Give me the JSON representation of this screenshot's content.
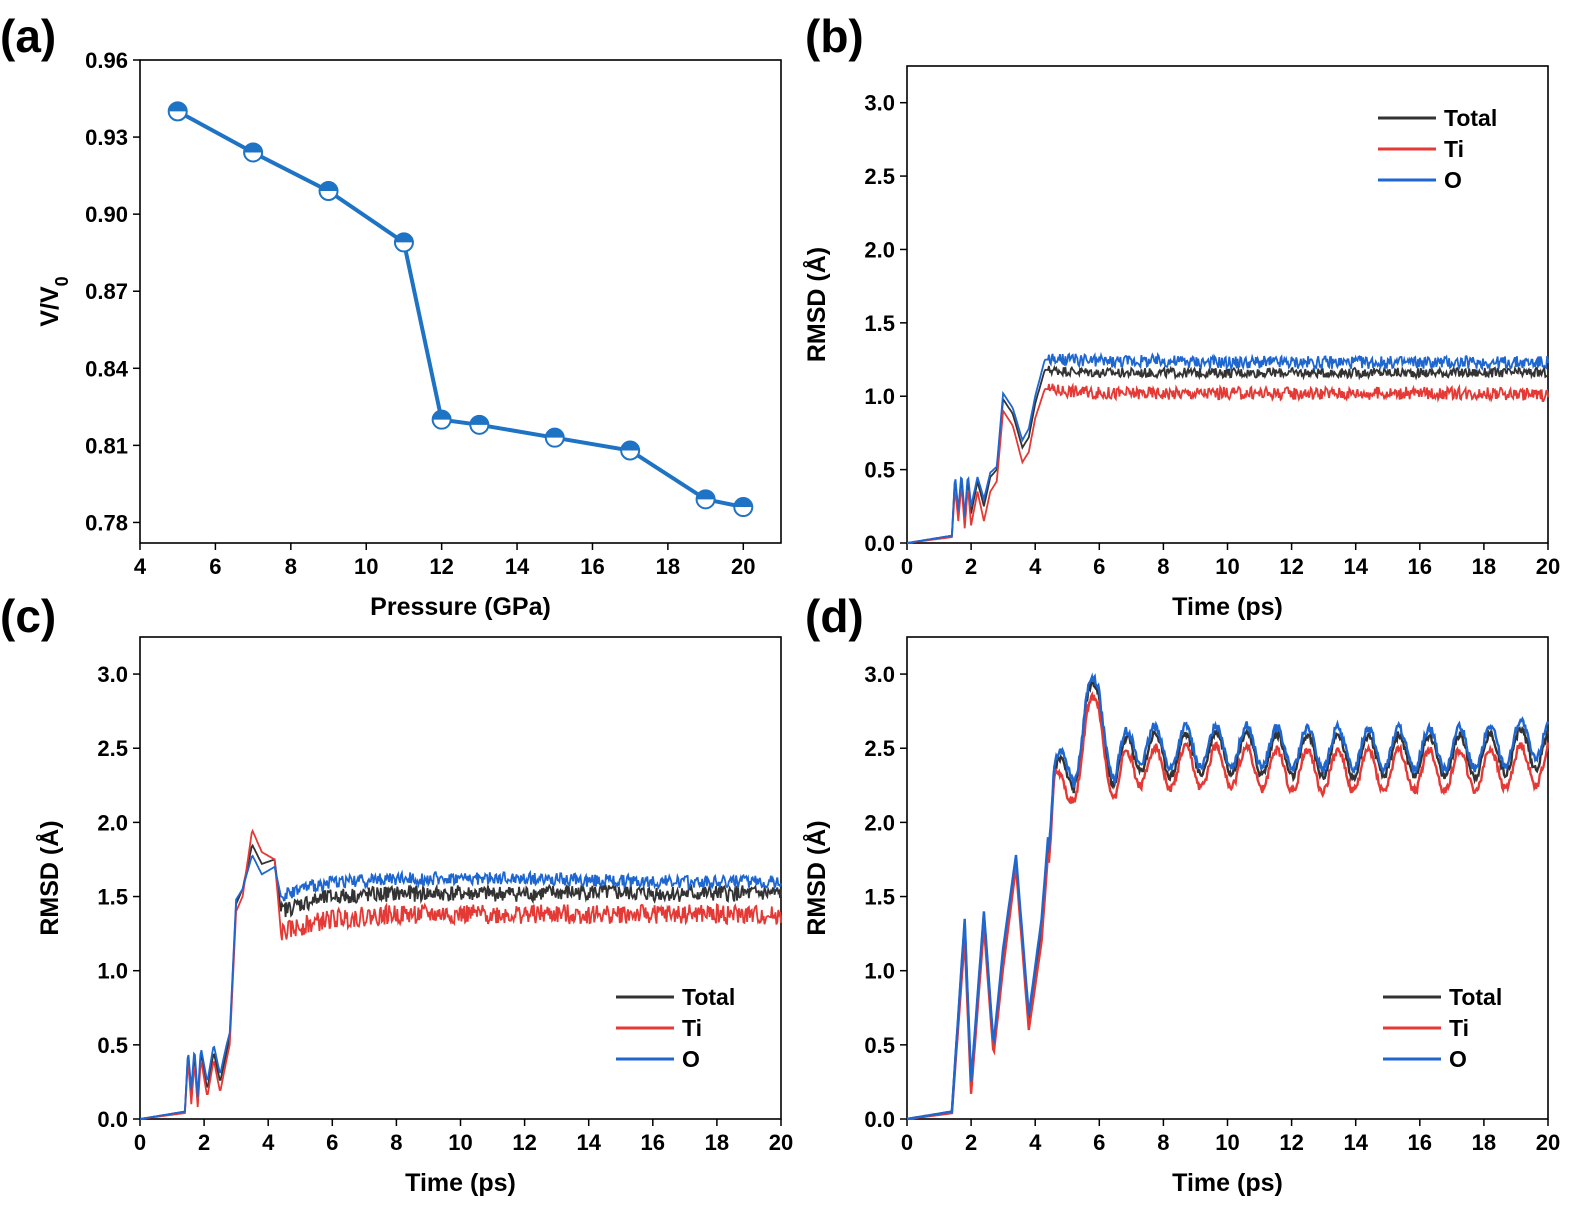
{
  "chart_data": [
    {
      "panel": "(a)",
      "type": "line",
      "xlabel": "Pressure (GPa)",
      "ylabel": "V/V",
      "ylabel_sub": "0",
      "xlim": [
        4,
        21
      ],
      "ylim": [
        0.772,
        0.96
      ],
      "xticks": [
        4,
        6,
        8,
        10,
        12,
        14,
        16,
        18,
        20
      ],
      "yticks": [
        0.78,
        0.81,
        0.84,
        0.87,
        0.9,
        0.93,
        0.96
      ],
      "ytick_labels": [
        "0.78",
        "0.81",
        "0.84",
        "0.87",
        "0.90",
        "0.93",
        "0.96"
      ],
      "color": "#1f73c4",
      "marker": "half-filled circle",
      "x": [
        5,
        7,
        9,
        11,
        12,
        13,
        15,
        17,
        19,
        20
      ],
      "y": [
        0.94,
        0.924,
        0.909,
        0.889,
        0.82,
        0.818,
        0.813,
        0.808,
        0.789,
        0.786
      ]
    },
    {
      "panel": "(b)",
      "type": "line",
      "xlabel": "Time (ps)",
      "ylabel": "RMSD (Å)",
      "xlim": [
        0,
        20
      ],
      "ylim": [
        0,
        3.25
      ],
      "xticks": [
        0,
        2,
        4,
        6,
        8,
        10,
        12,
        14,
        16,
        18,
        20
      ],
      "yticks": [
        0,
        0.5,
        1.0,
        1.5,
        2.0,
        2.5,
        3.0
      ],
      "ytick_labels": [
        "0.0",
        "0.5",
        "1.0",
        "1.5",
        "2.0",
        "2.5",
        "3.0"
      ],
      "legend_position": "top-right",
      "series": [
        {
          "name": "Total",
          "color": "#333333",
          "points": [
            [
              0,
              0
            ],
            [
              1.4,
              0.05
            ],
            [
              1.5,
              0.45
            ],
            [
              1.6,
              0.2
            ],
            [
              1.7,
              0.46
            ],
            [
              1.8,
              0.15
            ],
            [
              1.9,
              0.44
            ],
            [
              2.0,
              0.2
            ],
            [
              2.2,
              0.42
            ],
            [
              2.4,
              0.25
            ],
            [
              2.6,
              0.45
            ],
            [
              2.8,
              0.5
            ],
            [
              3.0,
              0.98
            ],
            [
              3.3,
              0.88
            ],
            [
              3.6,
              0.65
            ],
            [
              3.8,
              0.72
            ],
            [
              4.0,
              0.95
            ],
            [
              4.3,
              1.18
            ],
            [
              6,
              1.16
            ],
            [
              8,
              1.16
            ],
            [
              10,
              1.16
            ],
            [
              12,
              1.16
            ],
            [
              14,
              1.16
            ],
            [
              16,
              1.16
            ],
            [
              18,
              1.16
            ],
            [
              20,
              1.16
            ]
          ],
          "base": 1.16,
          "amp": 0.03
        },
        {
          "name": "Ti",
          "color": "#e53935",
          "points": [
            [
              0,
              0
            ],
            [
              1.4,
              0.04
            ],
            [
              1.5,
              0.38
            ],
            [
              1.6,
              0.15
            ],
            [
              1.7,
              0.4
            ],
            [
              1.8,
              0.1
            ],
            [
              1.9,
              0.38
            ],
            [
              2.0,
              0.12
            ],
            [
              2.2,
              0.35
            ],
            [
              2.4,
              0.15
            ],
            [
              2.6,
              0.35
            ],
            [
              2.8,
              0.42
            ],
            [
              3.0,
              0.9
            ],
            [
              3.3,
              0.8
            ],
            [
              3.6,
              0.55
            ],
            [
              3.8,
              0.62
            ],
            [
              4.0,
              0.85
            ],
            [
              4.3,
              1.05
            ],
            [
              6,
              1.02
            ],
            [
              8,
              1.02
            ],
            [
              10,
              1.02
            ],
            [
              12,
              1.02
            ],
            [
              14,
              1.02
            ],
            [
              16,
              1.02
            ],
            [
              18,
              1.02
            ],
            [
              20,
              1.01
            ]
          ],
          "base": 1.02,
          "amp": 0.04
        },
        {
          "name": "O",
          "color": "#1e66d0",
          "points": [
            [
              0,
              0
            ],
            [
              1.4,
              0.05
            ],
            [
              1.5,
              0.47
            ],
            [
              1.6,
              0.22
            ],
            [
              1.7,
              0.48
            ],
            [
              1.8,
              0.18
            ],
            [
              1.9,
              0.47
            ],
            [
              2.0,
              0.25
            ],
            [
              2.2,
              0.45
            ],
            [
              2.4,
              0.3
            ],
            [
              2.6,
              0.48
            ],
            [
              2.8,
              0.52
            ],
            [
              3.0,
              1.02
            ],
            [
              3.3,
              0.92
            ],
            [
              3.6,
              0.7
            ],
            [
              3.8,
              0.78
            ],
            [
              4.0,
              1.0
            ],
            [
              4.3,
              1.25
            ],
            [
              6,
              1.24
            ],
            [
              8,
              1.24
            ],
            [
              10,
              1.23
            ],
            [
              12,
              1.23
            ],
            [
              14,
              1.23
            ],
            [
              16,
              1.23
            ],
            [
              18,
              1.23
            ],
            [
              20,
              1.23
            ]
          ],
          "base": 1.23,
          "amp": 0.04
        }
      ]
    },
    {
      "panel": "(c)",
      "type": "line",
      "xlabel": "Time (ps)",
      "ylabel": "RMSD (Å)",
      "xlim": [
        0,
        20
      ],
      "ylim": [
        0,
        3.25
      ],
      "xticks": [
        0,
        2,
        4,
        6,
        8,
        10,
        12,
        14,
        16,
        18,
        20
      ],
      "yticks": [
        0,
        0.5,
        1.0,
        1.5,
        2.0,
        2.5,
        3.0
      ],
      "ytick_labels": [
        "0.0",
        "0.5",
        "1.0",
        "1.5",
        "2.0",
        "2.5",
        "3.0"
      ],
      "legend_position": "bottom-right",
      "series": [
        {
          "name": "Total",
          "color": "#333333",
          "points": [
            [
              0,
              0
            ],
            [
              1.4,
              0.05
            ],
            [
              1.5,
              0.45
            ],
            [
              1.6,
              0.15
            ],
            [
              1.7,
              0.45
            ],
            [
              1.8,
              0.12
            ],
            [
              1.9,
              0.45
            ],
            [
              2.1,
              0.2
            ],
            [
              2.3,
              0.45
            ],
            [
              2.5,
              0.25
            ],
            [
              2.7,
              0.45
            ],
            [
              2.8,
              0.55
            ],
            [
              3.0,
              1.45
            ],
            [
              3.2,
              1.55
            ],
            [
              3.5,
              1.85
            ],
            [
              3.8,
              1.72
            ],
            [
              4.2,
              1.75
            ],
            [
              4.4,
              1.4
            ],
            [
              5,
              1.45
            ],
            [
              6,
              1.5
            ],
            [
              8,
              1.52
            ],
            [
              10,
              1.52
            ],
            [
              12,
              1.52
            ],
            [
              14,
              1.53
            ],
            [
              16,
              1.52
            ],
            [
              18,
              1.52
            ],
            [
              20,
              1.52
            ]
          ],
          "base": 1.52,
          "amp": 0.05
        },
        {
          "name": "Ti",
          "color": "#e53935",
          "points": [
            [
              0,
              0
            ],
            [
              1.4,
              0.04
            ],
            [
              1.5,
              0.4
            ],
            [
              1.6,
              0.1
            ],
            [
              1.7,
              0.38
            ],
            [
              1.8,
              0.08
            ],
            [
              1.9,
              0.4
            ],
            [
              2.1,
              0.15
            ],
            [
              2.3,
              0.4
            ],
            [
              2.5,
              0.18
            ],
            [
              2.7,
              0.4
            ],
            [
              2.8,
              0.5
            ],
            [
              3.0,
              1.4
            ],
            [
              3.2,
              1.5
            ],
            [
              3.5,
              1.95
            ],
            [
              3.8,
              1.8
            ],
            [
              4.2,
              1.75
            ],
            [
              4.4,
              1.25
            ],
            [
              5,
              1.3
            ],
            [
              6,
              1.35
            ],
            [
              8,
              1.38
            ],
            [
              10,
              1.38
            ],
            [
              12,
              1.38
            ],
            [
              14,
              1.38
            ],
            [
              16,
              1.38
            ],
            [
              18,
              1.38
            ],
            [
              20,
              1.37
            ]
          ],
          "base": 1.38,
          "amp": 0.06
        },
        {
          "name": "O",
          "color": "#1e66d0",
          "points": [
            [
              0,
              0
            ],
            [
              1.4,
              0.05
            ],
            [
              1.5,
              0.47
            ],
            [
              1.6,
              0.2
            ],
            [
              1.7,
              0.48
            ],
            [
              1.8,
              0.15
            ],
            [
              1.9,
              0.48
            ],
            [
              2.1,
              0.25
            ],
            [
              2.3,
              0.5
            ],
            [
              2.5,
              0.3
            ],
            [
              2.7,
              0.5
            ],
            [
              2.8,
              0.58
            ],
            [
              3.0,
              1.48
            ],
            [
              3.2,
              1.55
            ],
            [
              3.5,
              1.78
            ],
            [
              3.8,
              1.65
            ],
            [
              4.2,
              1.7
            ],
            [
              4.4,
              1.5
            ],
            [
              5,
              1.55
            ],
            [
              6,
              1.6
            ],
            [
              8,
              1.62
            ],
            [
              10,
              1.62
            ],
            [
              12,
              1.62
            ],
            [
              14,
              1.61
            ],
            [
              16,
              1.6
            ],
            [
              18,
              1.6
            ],
            [
              20,
              1.6
            ]
          ],
          "base": 1.61,
          "amp": 0.04
        }
      ]
    },
    {
      "panel": "(d)",
      "type": "line",
      "xlabel": "Time (ps)",
      "ylabel": "RMSD (Å)",
      "xlim": [
        0,
        20
      ],
      "ylim": [
        0,
        3.25
      ],
      "xticks": [
        0,
        2,
        4,
        6,
        8,
        10,
        12,
        14,
        16,
        18,
        20
      ],
      "yticks": [
        0,
        0.5,
        1.0,
        1.5,
        2.0,
        2.5,
        3.0
      ],
      "ytick_labels": [
        "0.0",
        "0.5",
        "1.0",
        "1.5",
        "2.0",
        "2.5",
        "3.0"
      ],
      "legend_position": "bottom-right",
      "series": [
        {
          "name": "Total",
          "color": "#333333",
          "points": [
            [
              0,
              0
            ],
            [
              1.4,
              0.05
            ],
            [
              1.8,
              1.32
            ],
            [
              2.0,
              0.22
            ],
            [
              2.4,
              1.38
            ],
            [
              2.7,
              0.48
            ],
            [
              3.0,
              1.1
            ],
            [
              3.4,
              1.75
            ],
            [
              3.8,
              0.65
            ],
            [
              4.2,
              1.3
            ],
            [
              4.6,
              2.42
            ],
            [
              5.0,
              2.22
            ],
            [
              5.2,
              2.28
            ],
            [
              5.6,
              2.85
            ],
            [
              6.0,
              2.75
            ],
            [
              6.5,
              2.3
            ],
            [
              7.0,
              2.5
            ],
            [
              8,
              2.45
            ],
            [
              10,
              2.48
            ],
            [
              12,
              2.45
            ],
            [
              14,
              2.45
            ],
            [
              16,
              2.45
            ],
            [
              18,
              2.45
            ],
            [
              20,
              2.52
            ]
          ],
          "base": 2.47,
          "amp": 0.14
        },
        {
          "name": "Ti",
          "color": "#e53935",
          "points": [
            [
              0,
              0
            ],
            [
              1.4,
              0.04
            ],
            [
              1.8,
              1.22
            ],
            [
              2.0,
              0.17
            ],
            [
              2.4,
              1.3
            ],
            [
              2.7,
              0.43
            ],
            [
              3.0,
              1.02
            ],
            [
              3.4,
              1.7
            ],
            [
              3.8,
              0.6
            ],
            [
              4.2,
              1.2
            ],
            [
              4.6,
              2.38
            ],
            [
              5.0,
              2.05
            ],
            [
              5.2,
              2.2
            ],
            [
              5.6,
              2.75
            ],
            [
              6.0,
              2.68
            ],
            [
              6.5,
              2.22
            ],
            [
              7.0,
              2.4
            ],
            [
              8,
              2.36
            ],
            [
              10,
              2.38
            ],
            [
              12,
              2.35
            ],
            [
              14,
              2.35
            ],
            [
              16,
              2.35
            ],
            [
              18,
              2.35
            ],
            [
              20,
              2.4
            ]
          ],
          "base": 2.37,
          "amp": 0.14
        },
        {
          "name": "O",
          "color": "#1e66d0",
          "points": [
            [
              0,
              0
            ],
            [
              1.4,
              0.05
            ],
            [
              1.8,
              1.35
            ],
            [
              2.0,
              0.25
            ],
            [
              2.4,
              1.4
            ],
            [
              2.7,
              0.5
            ],
            [
              3.0,
              1.15
            ],
            [
              3.4,
              1.78
            ],
            [
              3.8,
              0.7
            ],
            [
              4.2,
              1.35
            ],
            [
              4.6,
              2.45
            ],
            [
              5.0,
              2.28
            ],
            [
              5.2,
              2.32
            ],
            [
              5.6,
              2.88
            ],
            [
              6.0,
              2.8
            ],
            [
              6.5,
              2.35
            ],
            [
              7.0,
              2.55
            ],
            [
              8,
              2.5
            ],
            [
              10,
              2.52
            ],
            [
              12,
              2.5
            ],
            [
              14,
              2.5
            ],
            [
              16,
              2.5
            ],
            [
              18,
              2.5
            ],
            [
              20,
              2.58
            ]
          ],
          "base": 2.52,
          "amp": 0.14
        }
      ]
    }
  ]
}
